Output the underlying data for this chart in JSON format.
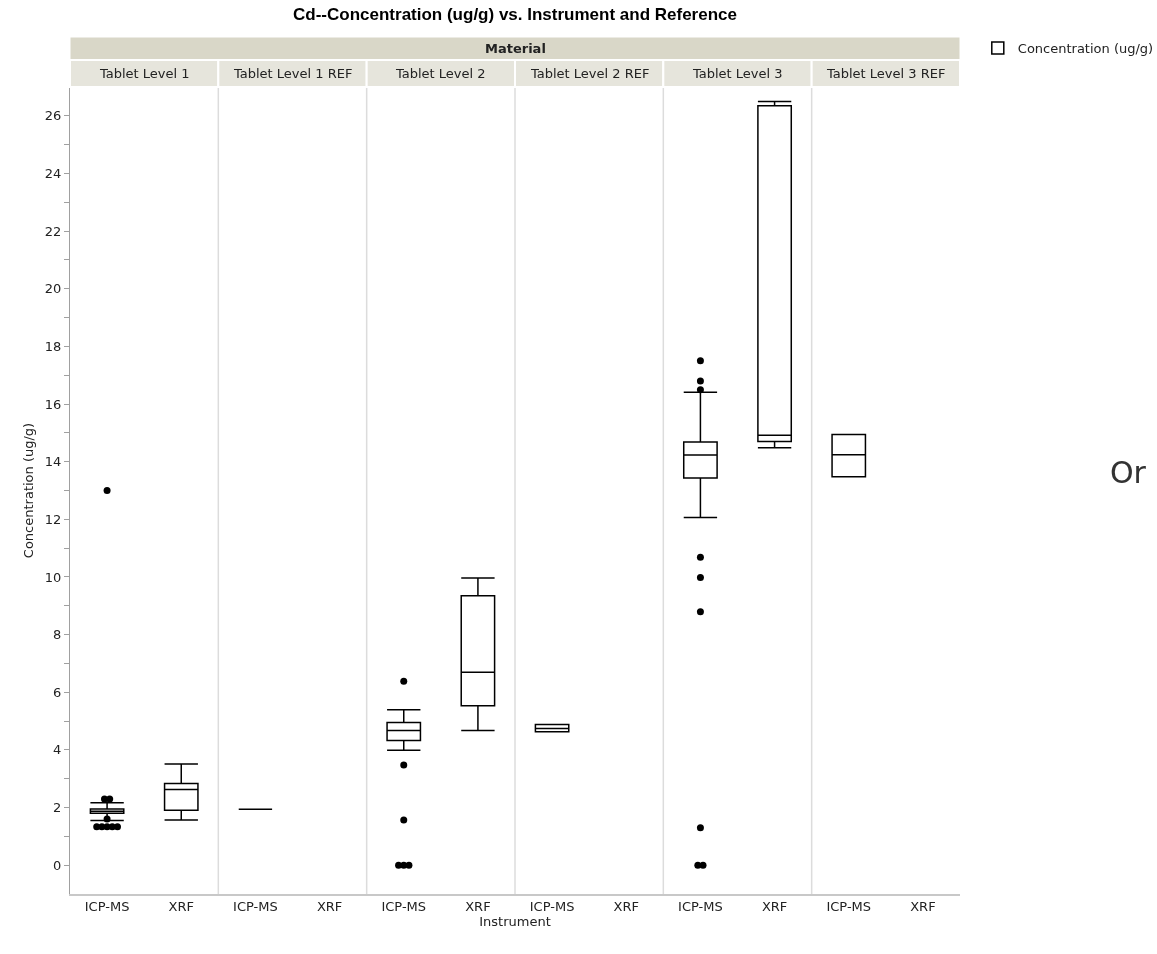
{
  "chart_data": {
    "type": "box",
    "title": "Cd--Concentration (ug/g) vs. Instrument and Reference",
    "xlabel": "Instrument",
    "ylabel": "Concentration (ug/g)",
    "annotations": [
      "Material",
      "Tablet Level 1",
      "Tablet Level 1 REF",
      "Tablet Level 2",
      "Tablet Level 2 REF",
      "Tablet Level 3",
      "Tablet Level 3 REF",
      "Or"
    ],
    "legend": "top right",
    "categories": [
      "ICP-MS",
      "XRF",
      "ICP-MS",
      "XRF",
      "ICP-MS",
      "XRF",
      "ICP-MS",
      "XRF",
      "ICP-MS",
      "XRF",
      "ICP-MS",
      "XRF"
    ],
    "ylim": [
      -1,
      27
    ],
    "yticks": [
      0,
      {
        "value": 1,
        "label": null
      },
      2,
      {
        "value": 3,
        "label": null
      },
      4,
      {
        "value": 5,
        "label": null
      },
      6,
      {
        "value": 7,
        "label": null
      },
      8,
      {
        "value": 9,
        "label": null
      },
      10,
      {
        "value": 11,
        "label": null
      },
      12,
      {
        "value": 13,
        "label": null
      },
      14,
      {
        "value": 15,
        "label": null
      },
      16,
      {
        "value": 17,
        "label": null
      },
      18,
      {
        "value": 19,
        "label": null
      },
      20,
      {
        "value": 21,
        "label": null
      },
      22,
      {
        "value": 23,
        "label": null
      },
      24,
      {
        "value": 25,
        "label": null
      },
      26
    ],
    "series": [
      {
        "name": "Concentration (ug/g)",
        "color": "#000000",
        "boxes": [
          {
            "low": 1.55,
            "q1": 1.8,
            "median": 1.87,
            "q3": 1.95,
            "high": 2.17,
            "outliers": [
              13.0,
              2.3,
              2.3,
              1.6,
              1.33,
              1.33,
              1.33,
              1.33,
              1.33
            ]
          },
          {
            "low": 1.57,
            "q1": 1.91,
            "median": 2.63,
            "q3": 2.83,
            "high": 3.51
          },
          {
            "low": 1.94,
            "q1": 1.94,
            "median": 1.94,
            "q3": 1.94,
            "high": 1.94
          },
          null,
          {
            "low": 3.99,
            "q1": 4.33,
            "median": 4.67,
            "q3": 4.95,
            "high": 5.39,
            "outliers": [
              6.38,
              3.48,
              1.57,
              0,
              0,
              0
            ]
          },
          {
            "low": 4.67,
            "q1": 5.53,
            "median": 6.69,
            "q3": 9.35,
            "high": 9.96
          },
          {
            "low": 4.63,
            "q1": 4.63,
            "median": 4.74,
            "q3": 4.88,
            "high": 4.88
          },
          null,
          {
            "low": 12.06,
            "q1": 13.43,
            "median": 14.23,
            "q3": 14.68,
            "high": 16.41,
            "outliers": [
              17.5,
              16.8,
              16.5,
              10.68,
              9.98,
              8.79,
              1.3,
              0,
              0
            ]
          },
          {
            "low": 14.48,
            "q1": 14.7,
            "median": 14.92,
            "q3": 26.35,
            "high": 26.5
          },
          {
            "low": 13.48,
            "q1": 13.48,
            "median": 14.24,
            "q3": 14.94,
            "high": 14.94
          },
          null
        ]
      }
    ]
  }
}
